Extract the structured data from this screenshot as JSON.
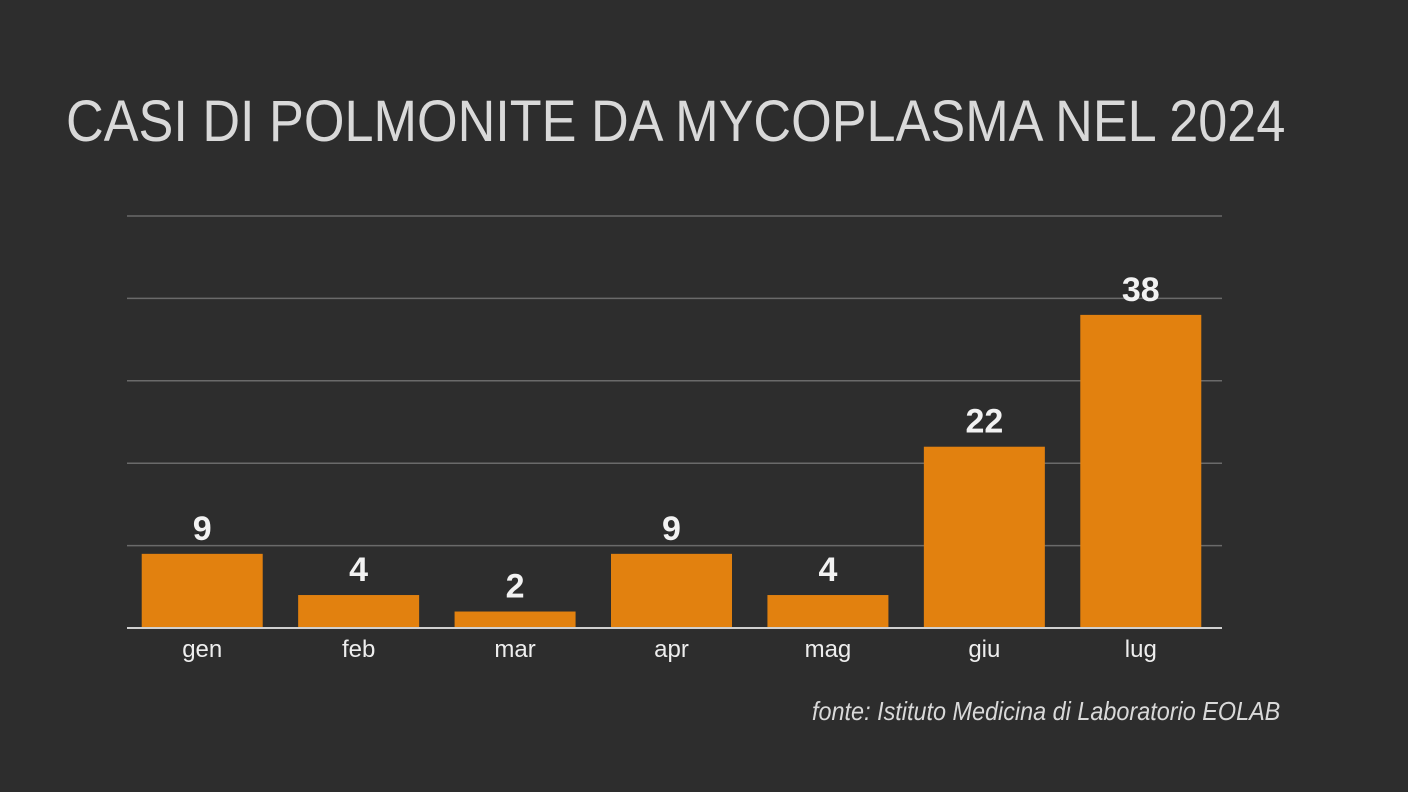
{
  "header": {
    "title": "CASI DI POLMONITE DA MYCOPLASMA NEL 2024"
  },
  "footer": {
    "source": "fonte: Istituto Medicina di Laboratorio EOLAB"
  },
  "colors": {
    "background": "#2d2d2d",
    "bar": "#e2810f",
    "text": "#d9d9d9",
    "grid": "#6a6a6a"
  },
  "chart_data": {
    "type": "bar",
    "title": "CASI DI POLMONITE DA MYCOPLASMA NEL 2024",
    "categories": [
      "gen",
      "feb",
      "mar",
      "apr",
      "mag",
      "giu",
      "lug"
    ],
    "values": [
      9,
      4,
      2,
      9,
      4,
      22,
      38
    ],
    "data_labels": [
      "9",
      "4",
      "2",
      "9",
      "4",
      "22",
      "38"
    ],
    "xlabel": "",
    "ylabel": "",
    "ylim": [
      0,
      50
    ],
    "gridlines": [
      10,
      20,
      30,
      40,
      50
    ],
    "grid": true,
    "legend": "none",
    "source": "fonte: Istituto Medicina di Laboratorio EOLAB"
  }
}
